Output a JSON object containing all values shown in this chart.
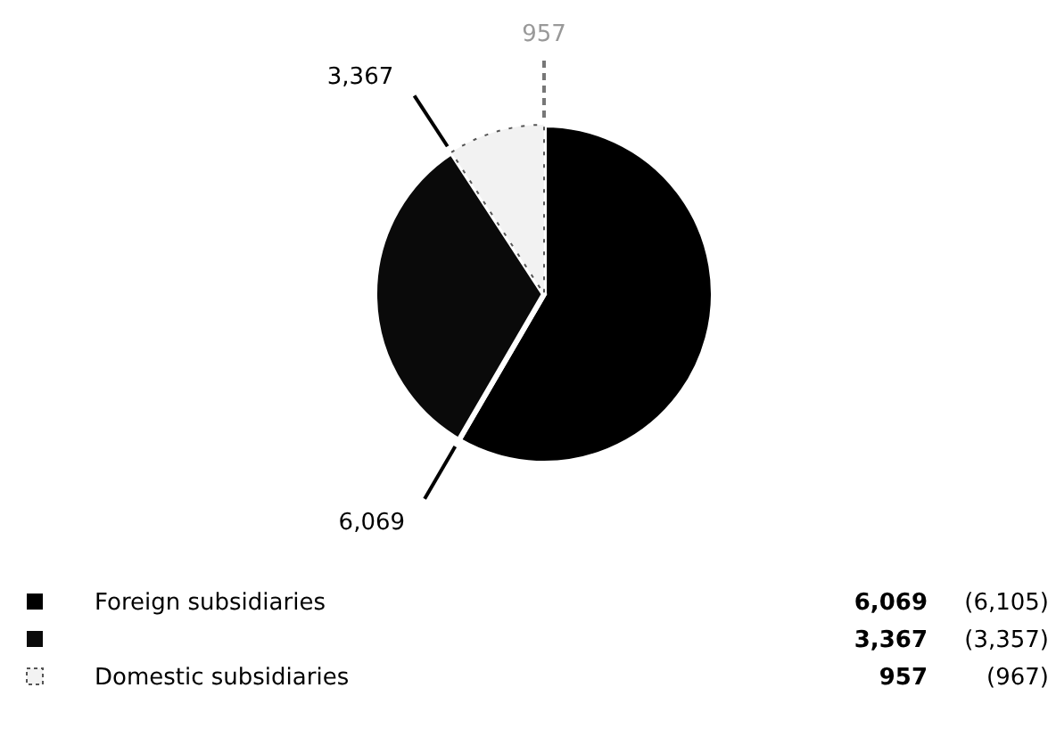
{
  "chart_data": {
    "type": "pie",
    "categories": [
      "Foreign subsidiaries",
      null,
      "Domestic subsidiaries"
    ],
    "values": [
      6069,
      3367,
      957
    ],
    "colors": [
      "#000000",
      "#0a0a0a",
      "#f2f2f2"
    ],
    "value_labels": [
      "6,069",
      "3,367",
      "957"
    ],
    "legend": "bottom",
    "annotations": [
      "(6,105)",
      "(3,357)",
      "(967)"
    ]
  }
}
